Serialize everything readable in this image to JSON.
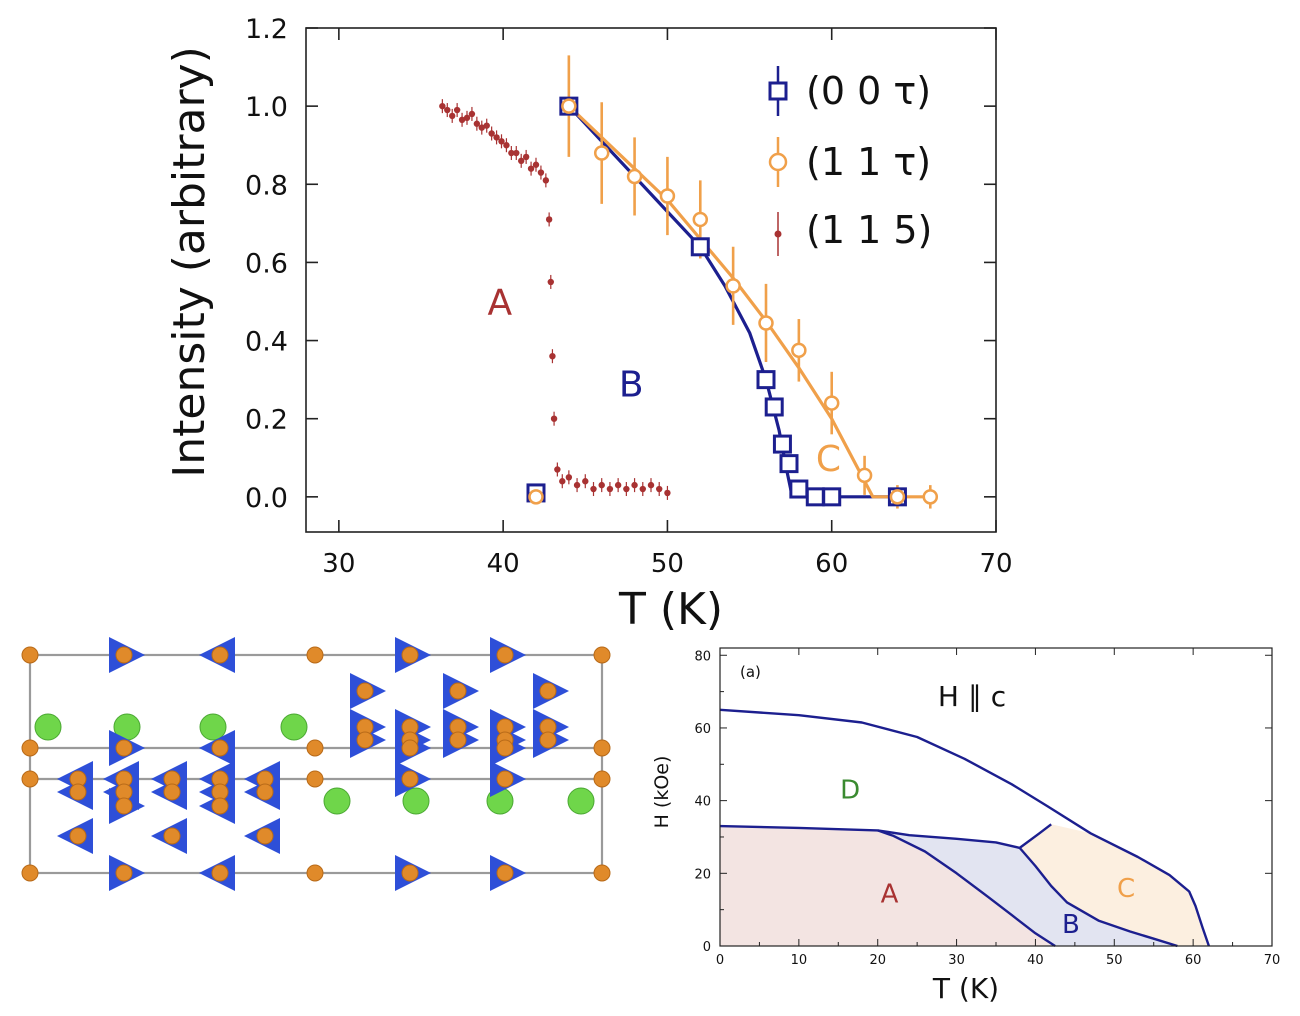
{
  "colors": {
    "blue": "#1c1f8f",
    "orange": "#f0a04a",
    "red": "#a83232",
    "green": "#3a8a30",
    "atom_orange": "#e08a2a",
    "atom_green": "#6fd64a",
    "arrow_blue": "#2e4fd8",
    "frame": "#9a9a9a",
    "region_A": "#f3e4e2",
    "region_B": "#e2e4f1",
    "region_C": "#fcefe0"
  },
  "chart_data": [
    {
      "type": "scatter",
      "title": "",
      "xlabel": "T (K)",
      "ylabel": "Intensity (arbitrary)",
      "xlim": [
        28,
        70
      ],
      "ylim": [
        -0.09,
        1.2
      ],
      "xticks": [
        30,
        40,
        50,
        60,
        70
      ],
      "xtick_labels": [
        "30",
        "40",
        "50",
        "60",
        "70"
      ],
      "yticks": [
        0.0,
        0.2,
        0.4,
        0.6,
        0.8,
        1.0,
        1.2
      ],
      "ytick_labels": [
        "0.0",
        "0.2",
        "0.4",
        "0.6",
        "0.8",
        "1.0",
        "1.2"
      ],
      "legend_position": "top-right",
      "legend": [
        "(0 0 τ)",
        "(1 1 τ)",
        "(1 1 5)"
      ],
      "annotations": [
        {
          "text": "A",
          "x": 39.8,
          "y": 0.5,
          "color": "red"
        },
        {
          "text": "B",
          "x": 47.8,
          "y": 0.29,
          "color": "blue"
        },
        {
          "text": "C",
          "x": 59.8,
          "y": 0.1,
          "color": "orange"
        }
      ],
      "series": [
        {
          "name": "(0 0 τ)",
          "color": "blue",
          "marker": "square",
          "x": [
            42.0,
            44.0,
            52.0,
            56.0,
            56.5,
            57.0,
            57.4,
            58.0,
            59.0,
            60.0,
            64.0
          ],
          "y": [
            0.01,
            1.0,
            0.64,
            0.3,
            0.23,
            0.135,
            0.085,
            0.02,
            0.0,
            0.0,
            0.0
          ],
          "fit_x": [
            44.0,
            46.0,
            48.0,
            50.0,
            52.0,
            53.5,
            55.0,
            56.0,
            56.8,
            57.3,
            57.6,
            58.0,
            60.0,
            62.0,
            64.5
          ],
          "fit_y": [
            1.0,
            0.91,
            0.82,
            0.73,
            0.64,
            0.54,
            0.42,
            0.3,
            0.17,
            0.06,
            0.0,
            0.0,
            0.0,
            0.0,
            0.0
          ]
        },
        {
          "name": "(1 1 τ)",
          "color": "orange",
          "marker": "circle",
          "x": [
            42.0,
            44.0,
            46.0,
            48.0,
            50.0,
            52.0,
            54.0,
            56.0,
            58.0,
            60.0,
            62.0,
            64.0,
            66.0
          ],
          "y": [
            0.0,
            1.0,
            0.88,
            0.82,
            0.77,
            0.71,
            0.54,
            0.445,
            0.375,
            0.24,
            0.055,
            0.0,
            0.0
          ],
          "err": [
            0.0,
            0.13,
            0.13,
            0.1,
            0.1,
            0.1,
            0.1,
            0.1,
            0.08,
            0.08,
            0.05,
            0.03,
            0.03
          ],
          "fit_x": [
            44.0,
            46.0,
            48.0,
            50.0,
            52.0,
            54.0,
            56.0,
            58.0,
            60.0,
            61.5,
            62.5,
            64.0,
            66.0
          ],
          "fit_y": [
            1.0,
            0.92,
            0.84,
            0.76,
            0.66,
            0.56,
            0.45,
            0.33,
            0.2,
            0.08,
            0.0,
            0.0,
            0.0
          ]
        },
        {
          "name": "(1 1 5)",
          "color": "red",
          "marker": "dot",
          "x": [
            36.3,
            36.6,
            36.9,
            37.2,
            37.5,
            37.8,
            38.1,
            38.4,
            38.7,
            39.0,
            39.3,
            39.6,
            39.9,
            40.2,
            40.5,
            40.8,
            41.1,
            41.4,
            41.7,
            42.0,
            42.3,
            42.6,
            42.8,
            42.9,
            43.0,
            43.1,
            43.3,
            43.6,
            44.0,
            44.5,
            45.0,
            45.5,
            46.0,
            46.5,
            47.0,
            47.5,
            48.0,
            48.5,
            49.0,
            49.5,
            50.0
          ],
          "y": [
            1.0,
            0.99,
            0.975,
            0.99,
            0.965,
            0.97,
            0.98,
            0.955,
            0.945,
            0.95,
            0.93,
            0.92,
            0.91,
            0.9,
            0.88,
            0.88,
            0.86,
            0.87,
            0.84,
            0.85,
            0.83,
            0.81,
            0.71,
            0.55,
            0.36,
            0.2,
            0.07,
            0.04,
            0.05,
            0.03,
            0.04,
            0.02,
            0.03,
            0.02,
            0.03,
            0.02,
            0.03,
            0.02,
            0.03,
            0.02,
            0.01
          ]
        }
      ]
    },
    {
      "type": "line",
      "title": "H ∥ c",
      "panel_label": "(a)",
      "xlabel": "T (K)",
      "ylabel": "H (kOe)",
      "xlim": [
        0,
        70
      ],
      "ylim": [
        0,
        82
      ],
      "xticks": [
        0,
        10,
        20,
        30,
        40,
        50,
        60,
        70
      ],
      "xtick_labels": [
        "0",
        "10",
        "20",
        "30",
        "40",
        "50",
        "60",
        "70"
      ],
      "yticks": [
        0,
        20,
        40,
        60,
        80
      ],
      "ytick_labels": [
        "0",
        "20",
        "40",
        "60",
        "80"
      ],
      "regions": [
        {
          "label": "A",
          "x": 21.5,
          "y": 14.5,
          "color": "red",
          "fill": "region_A"
        },
        {
          "label": "B",
          "x": 44.5,
          "y": 6.0,
          "color": "blue",
          "fill": "region_B"
        },
        {
          "label": "C",
          "x": 51.5,
          "y": 16.0,
          "color": "orange",
          "fill": "region_C"
        },
        {
          "label": "D",
          "x": 16.5,
          "y": 43.0,
          "color": "green",
          "fill": ""
        }
      ],
      "series": [
        {
          "x": [
            0,
            10,
            18,
            25,
            31,
            37,
            41.5,
            47,
            53,
            57,
            59.5,
            60.3,
            61.2,
            62.0
          ],
          "y": [
            65,
            63.5,
            61.5,
            57.5,
            51.5,
            44.5,
            38.5,
            31,
            24.5,
            19.5,
            15,
            11,
            5,
            0
          ]
        },
        {
          "x": [
            0,
            10,
            20,
            24,
            30,
            35,
            38
          ],
          "y": [
            33,
            32.5,
            31.8,
            30.5,
            29.5,
            28.5,
            27
          ]
        },
        {
          "x": [
            38,
            40.5,
            42
          ],
          "y": [
            27,
            31,
            33.5
          ]
        },
        {
          "x": [
            38,
            40,
            42,
            44,
            48,
            52,
            55,
            58
          ],
          "y": [
            27,
            22,
            16.5,
            12,
            7,
            4,
            2,
            0
          ]
        },
        {
          "x": [
            20,
            22,
            26,
            30,
            34,
            37,
            40,
            42.5
          ],
          "y": [
            31.8,
            30.3,
            26,
            20,
            13.5,
            8.5,
            3.5,
            0
          ]
        }
      ]
    }
  ],
  "structure": {
    "type": "crystal-structure",
    "atoms": "orange and green spheres",
    "spins": "blue arrows"
  }
}
